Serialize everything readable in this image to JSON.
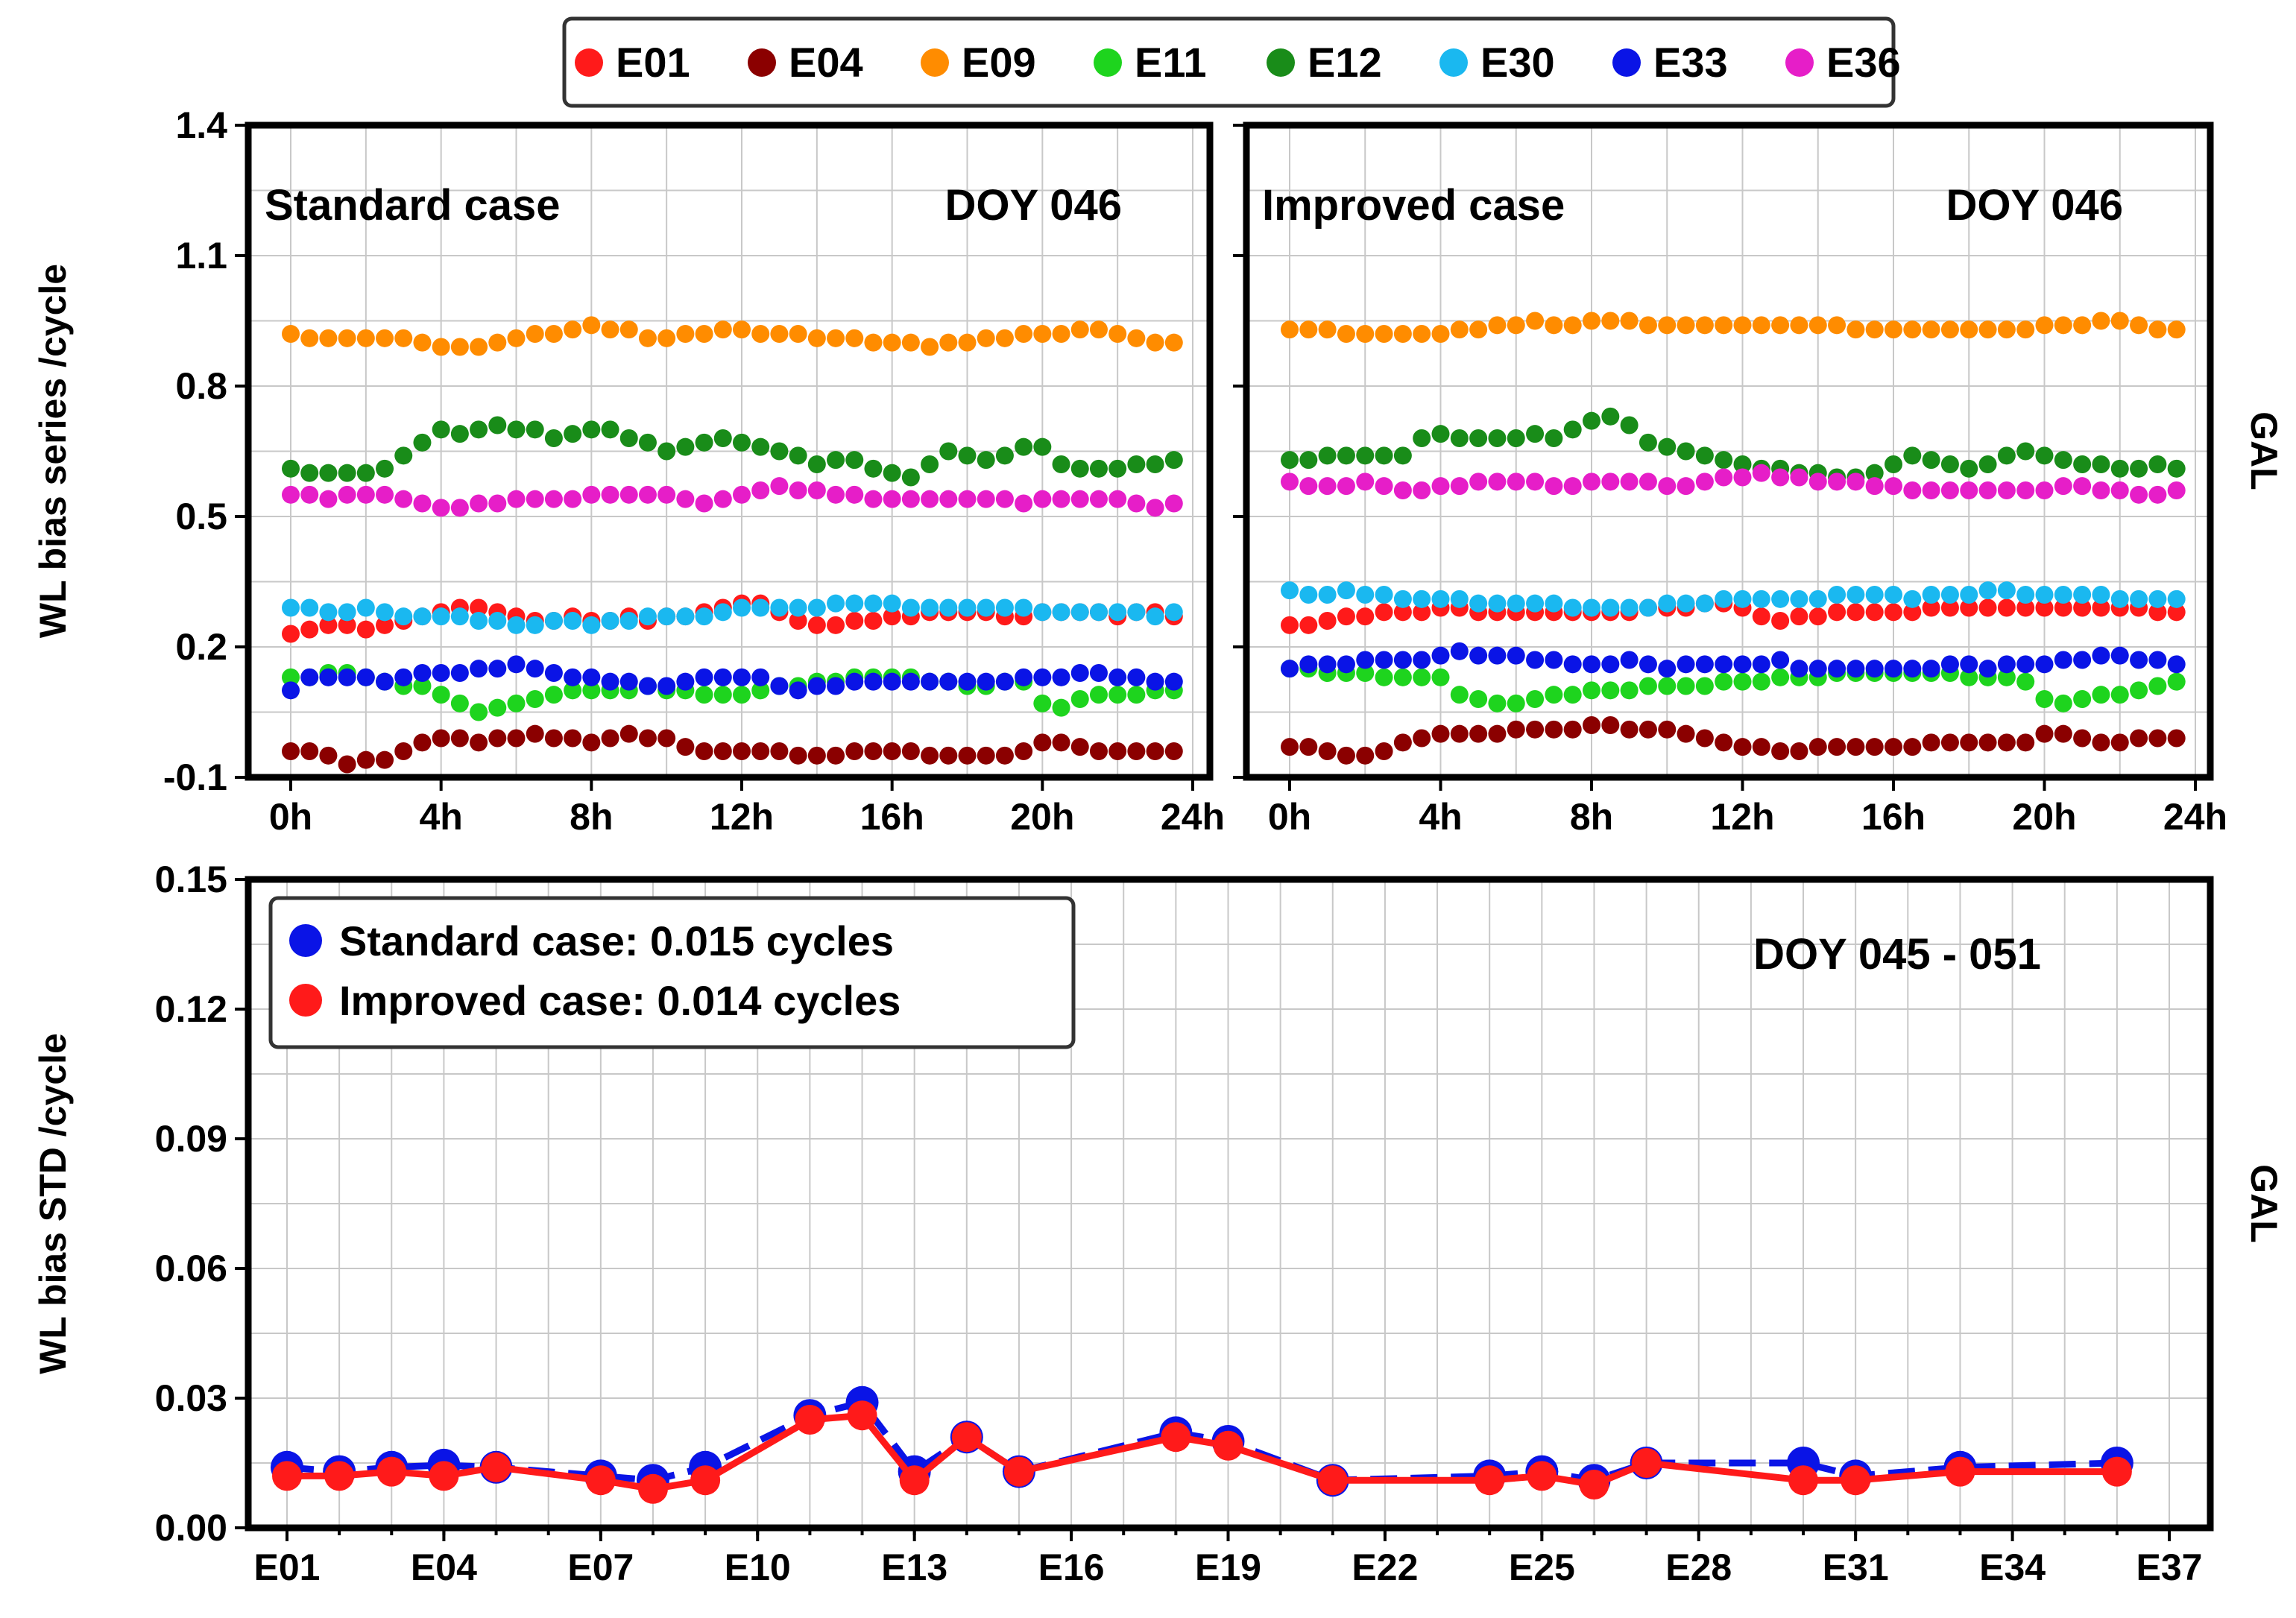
{
  "chart_data": [
    {
      "type": "scatter",
      "panel": "top-left",
      "label": "Standard case",
      "doy_label": "DOY 046",
      "ylabel": "WL bias series /cycle",
      "side_label": "GAL",
      "ylim": [
        -0.1,
        1.4
      ],
      "yticks": [
        "-0.1",
        "0.2",
        "0.5",
        "0.8",
        "1.1",
        "1.4"
      ],
      "xlim": [
        0,
        24
      ],
      "xticks": [
        "0h",
        "4h",
        "8h",
        "12h",
        "16h",
        "20h",
        "24h"
      ],
      "time_step_h": 0.5,
      "series": [
        {
          "name": "E01",
          "color": "#ff1a1a",
          "values": [
            0.23,
            0.24,
            0.25,
            0.25,
            0.24,
            0.25,
            0.26,
            0.27,
            0.28,
            0.29,
            0.29,
            0.28,
            0.27,
            0.26,
            0.26,
            0.27,
            0.26,
            0.26,
            0.27,
            0.26,
            0.27,
            0.27,
            0.28,
            0.29,
            0.3,
            0.3,
            0.28,
            0.26,
            0.25,
            0.25,
            0.26,
            0.26,
            0.27,
            0.27,
            0.28,
            0.28,
            0.28,
            0.28,
            0.27,
            0.27,
            0.28,
            0.28,
            0.28,
            0.28,
            0.27,
            0.28,
            0.28,
            0.27
          ]
        },
        {
          "name": "E04",
          "color": "#8b0000",
          "values": [
            -0.04,
            -0.04,
            -0.05,
            -0.07,
            -0.06,
            -0.06,
            -0.04,
            -0.02,
            -0.01,
            -0.01,
            -0.02,
            -0.01,
            -0.01,
            0.0,
            -0.01,
            -0.01,
            -0.02,
            -0.01,
            0.0,
            -0.01,
            -0.01,
            -0.03,
            -0.04,
            -0.04,
            -0.04,
            -0.04,
            -0.04,
            -0.05,
            -0.05,
            -0.05,
            -0.04,
            -0.04,
            -0.04,
            -0.04,
            -0.05,
            -0.05,
            -0.05,
            -0.05,
            -0.05,
            -0.04,
            -0.02,
            -0.02,
            -0.03,
            -0.04,
            -0.04,
            -0.04,
            -0.04,
            -0.04
          ]
        },
        {
          "name": "E09",
          "color": "#ff8c00",
          "values": [
            0.92,
            0.91,
            0.91,
            0.91,
            0.91,
            0.91,
            0.91,
            0.9,
            0.89,
            0.89,
            0.89,
            0.9,
            0.91,
            0.92,
            0.92,
            0.93,
            0.94,
            0.93,
            0.93,
            0.91,
            0.91,
            0.92,
            0.92,
            0.93,
            0.93,
            0.92,
            0.92,
            0.92,
            0.91,
            0.91,
            0.91,
            0.9,
            0.9,
            0.9,
            0.89,
            0.9,
            0.9,
            0.91,
            0.91,
            0.92,
            0.92,
            0.92,
            0.93,
            0.93,
            0.92,
            0.91,
            0.9,
            0.9
          ]
        },
        {
          "name": "E11",
          "color": "#1ed41e",
          "values": [
            0.13,
            0.13,
            0.14,
            0.14,
            0.13,
            0.12,
            0.11,
            0.11,
            0.09,
            0.07,
            0.05,
            0.06,
            0.07,
            0.08,
            0.09,
            0.1,
            0.1,
            0.1,
            0.1,
            0.11,
            0.1,
            0.1,
            0.09,
            0.09,
            0.09,
            0.1,
            0.11,
            0.11,
            0.12,
            0.12,
            0.13,
            0.13,
            0.13,
            0.13,
            0.12,
            0.12,
            0.11,
            0.11,
            0.12,
            0.12,
            0.07,
            0.06,
            0.08,
            0.09,
            0.09,
            0.09,
            0.1,
            0.1
          ]
        },
        {
          "name": "E12",
          "color": "#198c19",
          "values": [
            0.61,
            0.6,
            0.6,
            0.6,
            0.6,
            0.61,
            0.64,
            0.67,
            0.7,
            0.69,
            0.7,
            0.71,
            0.7,
            0.7,
            0.68,
            0.69,
            0.7,
            0.7,
            0.68,
            0.67,
            0.65,
            0.66,
            0.67,
            0.68,
            0.67,
            0.66,
            0.65,
            0.64,
            0.62,
            0.63,
            0.63,
            0.61,
            0.6,
            0.59,
            0.62,
            0.65,
            0.64,
            0.63,
            0.64,
            0.66,
            0.66,
            0.62,
            0.61,
            0.61,
            0.61,
            0.62,
            0.62,
            0.63
          ]
        },
        {
          "name": "E30",
          "color": "#1ab8f0",
          "values": [
            0.29,
            0.29,
            0.28,
            0.28,
            0.29,
            0.28,
            0.27,
            0.27,
            0.27,
            0.27,
            0.26,
            0.26,
            0.25,
            0.25,
            0.26,
            0.26,
            0.25,
            0.26,
            0.26,
            0.27,
            0.27,
            0.27,
            0.27,
            0.28,
            0.29,
            0.29,
            0.29,
            0.29,
            0.29,
            0.3,
            0.3,
            0.3,
            0.3,
            0.29,
            0.29,
            0.29,
            0.29,
            0.29,
            0.29,
            0.29,
            0.28,
            0.28,
            0.28,
            0.28,
            0.28,
            0.28,
            0.27,
            0.28
          ]
        },
        {
          "name": "E33",
          "color": "#0a14e6",
          "values": [
            0.1,
            0.13,
            0.13,
            0.13,
            0.13,
            0.12,
            0.13,
            0.14,
            0.14,
            0.14,
            0.15,
            0.15,
            0.16,
            0.15,
            0.14,
            0.13,
            0.13,
            0.12,
            0.12,
            0.11,
            0.11,
            0.12,
            0.13,
            0.13,
            0.13,
            0.13,
            0.11,
            0.1,
            0.11,
            0.11,
            0.12,
            0.12,
            0.12,
            0.12,
            0.12,
            0.12,
            0.12,
            0.12,
            0.12,
            0.13,
            0.13,
            0.13,
            0.14,
            0.14,
            0.13,
            0.13,
            0.12,
            0.12
          ]
        },
        {
          "name": "E36",
          "color": "#e61ec8",
          "values": [
            0.55,
            0.55,
            0.54,
            0.55,
            0.55,
            0.55,
            0.54,
            0.53,
            0.52,
            0.52,
            0.53,
            0.53,
            0.54,
            0.54,
            0.54,
            0.54,
            0.55,
            0.55,
            0.55,
            0.55,
            0.55,
            0.54,
            0.53,
            0.54,
            0.55,
            0.56,
            0.57,
            0.56,
            0.56,
            0.55,
            0.55,
            0.54,
            0.54,
            0.54,
            0.54,
            0.54,
            0.54,
            0.54,
            0.54,
            0.53,
            0.54,
            0.54,
            0.54,
            0.54,
            0.54,
            0.53,
            0.52,
            0.53
          ]
        }
      ]
    },
    {
      "type": "scatter",
      "panel": "top-right",
      "label": "Improved case",
      "doy_label": "DOY 046",
      "side_label": "GAL",
      "ylim": [
        -0.1,
        1.4
      ],
      "xlim": [
        0,
        24
      ],
      "xticks": [
        "0h",
        "4h",
        "8h",
        "12h",
        "16h",
        "20h",
        "24h"
      ],
      "time_step_h": 0.5,
      "series": [
        {
          "name": "E01",
          "color": "#ff1a1a",
          "values": [
            0.25,
            0.25,
            0.26,
            0.27,
            0.27,
            0.28,
            0.28,
            0.28,
            0.29,
            0.29,
            0.28,
            0.28,
            0.28,
            0.28,
            0.28,
            0.28,
            0.28,
            0.28,
            0.28,
            0.29,
            0.29,
            0.29,
            0.3,
            0.3,
            0.29,
            0.27,
            0.26,
            0.27,
            0.27,
            0.28,
            0.28,
            0.28,
            0.28,
            0.28,
            0.29,
            0.29,
            0.29,
            0.29,
            0.29,
            0.29,
            0.29,
            0.29,
            0.29,
            0.29,
            0.29,
            0.29,
            0.28,
            0.28
          ]
        },
        {
          "name": "E04",
          "color": "#8b0000",
          "values": [
            -0.03,
            -0.03,
            -0.04,
            -0.05,
            -0.05,
            -0.04,
            -0.02,
            -0.01,
            0.0,
            0.0,
            0.0,
            0.0,
            0.01,
            0.01,
            0.01,
            0.01,
            0.02,
            0.02,
            0.01,
            0.01,
            0.01,
            0.0,
            -0.01,
            -0.02,
            -0.03,
            -0.03,
            -0.04,
            -0.04,
            -0.03,
            -0.03,
            -0.03,
            -0.03,
            -0.03,
            -0.03,
            -0.02,
            -0.02,
            -0.02,
            -0.02,
            -0.02,
            -0.02,
            0.0,
            0.0,
            -0.01,
            -0.02,
            -0.02,
            -0.01,
            -0.01,
            -0.01
          ]
        },
        {
          "name": "E09",
          "color": "#ff8c00",
          "values": [
            0.93,
            0.93,
            0.93,
            0.92,
            0.92,
            0.92,
            0.92,
            0.92,
            0.92,
            0.93,
            0.93,
            0.94,
            0.94,
            0.95,
            0.94,
            0.94,
            0.95,
            0.95,
            0.95,
            0.94,
            0.94,
            0.94,
            0.94,
            0.94,
            0.94,
            0.94,
            0.94,
            0.94,
            0.94,
            0.94,
            0.93,
            0.93,
            0.93,
            0.93,
            0.93,
            0.93,
            0.93,
            0.93,
            0.93,
            0.93,
            0.94,
            0.94,
            0.94,
            0.95,
            0.95,
            0.94,
            0.93,
            0.93
          ]
        },
        {
          "name": "E11",
          "color": "#1ed41e",
          "values": [
            0.15,
            0.15,
            0.14,
            0.14,
            0.14,
            0.13,
            0.13,
            0.13,
            0.13,
            0.09,
            0.08,
            0.07,
            0.07,
            0.08,
            0.09,
            0.09,
            0.1,
            0.1,
            0.1,
            0.11,
            0.11,
            0.11,
            0.11,
            0.12,
            0.12,
            0.12,
            0.13,
            0.13,
            0.13,
            0.14,
            0.14,
            0.14,
            0.14,
            0.14,
            0.14,
            0.14,
            0.13,
            0.13,
            0.13,
            0.12,
            0.08,
            0.07,
            0.08,
            0.09,
            0.09,
            0.1,
            0.11,
            0.12
          ]
        },
        {
          "name": "E12",
          "color": "#198c19",
          "values": [
            0.63,
            0.63,
            0.64,
            0.64,
            0.64,
            0.64,
            0.64,
            0.68,
            0.69,
            0.68,
            0.68,
            0.68,
            0.68,
            0.69,
            0.68,
            0.7,
            0.72,
            0.73,
            0.71,
            0.67,
            0.66,
            0.65,
            0.64,
            0.63,
            0.62,
            0.61,
            0.61,
            0.6,
            0.6,
            0.59,
            0.59,
            0.6,
            0.62,
            0.64,
            0.63,
            0.62,
            0.61,
            0.62,
            0.64,
            0.65,
            0.64,
            0.63,
            0.62,
            0.62,
            0.61,
            0.61,
            0.62,
            0.61
          ]
        },
        {
          "name": "E30",
          "color": "#1ab8f0",
          "values": [
            0.33,
            0.32,
            0.32,
            0.33,
            0.32,
            0.32,
            0.31,
            0.31,
            0.31,
            0.31,
            0.3,
            0.3,
            0.3,
            0.3,
            0.3,
            0.29,
            0.29,
            0.29,
            0.29,
            0.29,
            0.3,
            0.3,
            0.3,
            0.31,
            0.31,
            0.31,
            0.31,
            0.31,
            0.31,
            0.32,
            0.32,
            0.32,
            0.32,
            0.31,
            0.32,
            0.32,
            0.32,
            0.33,
            0.33,
            0.32,
            0.32,
            0.32,
            0.32,
            0.32,
            0.31,
            0.31,
            0.31,
            0.31
          ]
        },
        {
          "name": "E33",
          "color": "#0a14e6",
          "values": [
            0.15,
            0.16,
            0.16,
            0.16,
            0.17,
            0.17,
            0.17,
            0.17,
            0.18,
            0.19,
            0.18,
            0.18,
            0.18,
            0.17,
            0.17,
            0.16,
            0.16,
            0.16,
            0.17,
            0.16,
            0.15,
            0.16,
            0.16,
            0.16,
            0.16,
            0.16,
            0.17,
            0.15,
            0.15,
            0.15,
            0.15,
            0.15,
            0.15,
            0.15,
            0.15,
            0.16,
            0.16,
            0.15,
            0.16,
            0.16,
            0.16,
            0.17,
            0.17,
            0.18,
            0.18,
            0.17,
            0.17,
            0.16
          ]
        },
        {
          "name": "E36",
          "color": "#e61ec8",
          "values": [
            0.58,
            0.57,
            0.57,
            0.57,
            0.58,
            0.57,
            0.56,
            0.56,
            0.57,
            0.57,
            0.58,
            0.58,
            0.58,
            0.58,
            0.57,
            0.57,
            0.58,
            0.58,
            0.58,
            0.58,
            0.57,
            0.57,
            0.58,
            0.59,
            0.59,
            0.6,
            0.59,
            0.59,
            0.58,
            0.58,
            0.58,
            0.57,
            0.57,
            0.56,
            0.56,
            0.56,
            0.56,
            0.56,
            0.56,
            0.56,
            0.56,
            0.57,
            0.57,
            0.56,
            0.56,
            0.55,
            0.55,
            0.56
          ]
        }
      ]
    },
    {
      "type": "line",
      "panel": "bottom",
      "doy_label": "DOY 045 - 051",
      "ylabel": "WL bias STD /cycle",
      "side_label": "GAL",
      "ylim": [
        0.0,
        0.15
      ],
      "yticks": [
        "0.00",
        "0.03",
        "0.06",
        "0.09",
        "0.12",
        "0.15"
      ],
      "xlim": [
        1,
        37
      ],
      "xticks": [
        "E01",
        "E04",
        "E07",
        "E10",
        "E13",
        "E16",
        "E19",
        "E22",
        "E25",
        "E28",
        "E31",
        "E34",
        "E37"
      ],
      "series": [
        {
          "name": "Standard case: 0.015 cycles",
          "color": "#0a14e6",
          "x": [
            1,
            2,
            3,
            4,
            5,
            7,
            8,
            9,
            11,
            12,
            13,
            14,
            15,
            18,
            19,
            21,
            24,
            25,
            26,
            27,
            30,
            31,
            33,
            36
          ],
          "values": [
            0.014,
            0.013,
            0.014,
            0.0145,
            0.014,
            0.012,
            0.011,
            0.014,
            0.026,
            0.029,
            0.013,
            0.021,
            0.013,
            0.022,
            0.02,
            0.011,
            0.012,
            0.013,
            0.011,
            0.015,
            0.015,
            0.012,
            0.014,
            0.015
          ]
        },
        {
          "name": "Improved case: 0.014 cycles",
          "color": "#ff1a1a",
          "x": [
            1,
            2,
            3,
            4,
            5,
            7,
            8,
            9,
            11,
            12,
            13,
            14,
            15,
            18,
            19,
            21,
            24,
            25,
            26,
            27,
            30,
            31,
            33,
            36
          ],
          "values": [
            0.012,
            0.012,
            0.013,
            0.012,
            0.014,
            0.011,
            0.009,
            0.011,
            0.025,
            0.026,
            0.011,
            0.021,
            0.013,
            0.021,
            0.019,
            0.011,
            0.011,
            0.012,
            0.01,
            0.015,
            0.011,
            0.011,
            0.013,
            0.013
          ]
        }
      ]
    }
  ]
}
